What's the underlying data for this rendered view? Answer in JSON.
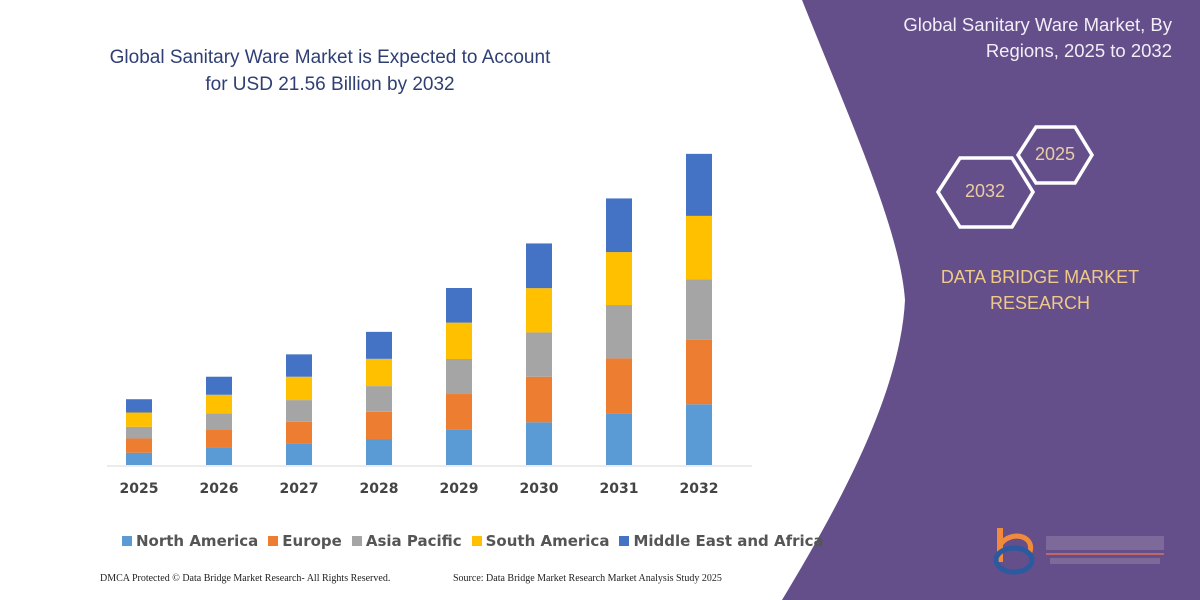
{
  "title": "Global Sanitary Ware Market is Expected to Account for USD 21.56 Billion by 2032",
  "side_panel": {
    "title": "Global Sanitary Ware Market, By Regions, 2025 to 2032",
    "hex_start": "2025",
    "hex_end": "2032",
    "brand": "DATA BRIDGE MARKET RESEARCH",
    "logo_text": "DATA BRIDGE MARKET RESEARCH",
    "colors": {
      "panel": "#644f8b",
      "brand_text": "#efc989"
    }
  },
  "footer": {
    "left": "DMCA Protected © Data Bridge Market Research- All Rights Reserved.",
    "right": "Source: Data Bridge Market Research Market Analysis Study 2025"
  },
  "chart_data": {
    "type": "bar",
    "stacked": true,
    "title": "Global Sanitary Ware Market is Expected to Account for USD 21.56 Billion by 2032",
    "xlabel": "",
    "ylabel": "",
    "ylim": [
      0,
      21.56
    ],
    "grid": false,
    "legend_position": "bottom",
    "categories": [
      "2025",
      "2026",
      "2027",
      "2028",
      "2029",
      "2030",
      "2031",
      "2032"
    ],
    "series": [
      {
        "name": "North America",
        "color": "#5b9bd5",
        "values": [
          0.85,
          1.22,
          1.5,
          1.8,
          2.47,
          2.96,
          3.58,
          4.21
        ]
      },
      {
        "name": "Europe",
        "color": "#ed7d31",
        "values": [
          0.99,
          1.25,
          1.5,
          1.89,
          2.45,
          3.16,
          3.81,
          4.46
        ]
      },
      {
        "name": "Asia Pacific",
        "color": "#a5a5a5",
        "values": [
          0.81,
          1.11,
          1.5,
          1.78,
          2.43,
          3.07,
          3.7,
          4.21
        ]
      },
      {
        "name": "South America",
        "color": "#ffc000",
        "values": [
          0.99,
          1.29,
          1.62,
          1.89,
          2.52,
          3.07,
          3.67,
          4.39
        ]
      },
      {
        "name": "Middle East and Africa",
        "color": "#4472c4",
        "values": [
          0.92,
          1.25,
          1.55,
          1.87,
          2.4,
          3.1,
          3.72,
          4.3
        ]
      }
    ]
  }
}
